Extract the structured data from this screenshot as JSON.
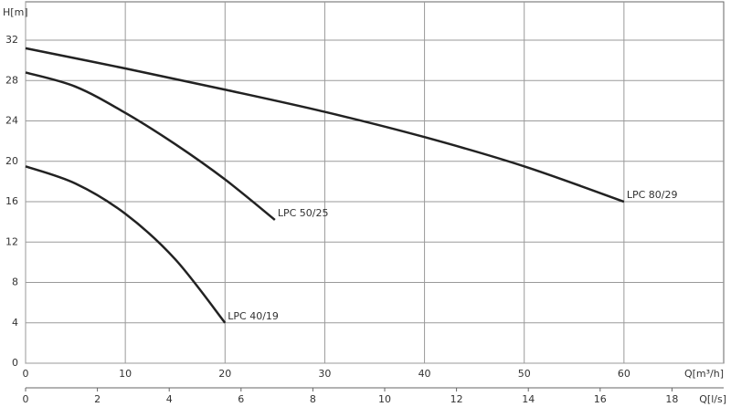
{
  "chart_data": {
    "type": "line",
    "ylabel": "H[m]",
    "xlabel": "Q[m³/h]",
    "x2label": "Q[l/s]",
    "xlim": [
      0,
      70
    ],
    "ylim": [
      0,
      35.8
    ],
    "x2lim": [
      0,
      19.44
    ],
    "xticks": [
      0,
      10,
      20,
      30,
      40,
      50,
      60
    ],
    "yticks": [
      0,
      4,
      8,
      12,
      16,
      20,
      24,
      28,
      32
    ],
    "x2ticks": [
      0,
      2,
      4,
      6,
      8,
      10,
      12,
      14,
      16,
      18
    ],
    "grid": true,
    "series": [
      {
        "name": "LPC 40/19",
        "color": "#222222",
        "x": [
          0,
          5,
          10,
          15,
          20
        ],
        "values": [
          19.5,
          17.8,
          14.8,
          10.3,
          4
        ]
      },
      {
        "name": "LPC 50/25",
        "color": "#222222",
        "x": [
          0,
          5,
          10,
          15,
          20,
          25
        ],
        "values": [
          28.8,
          27.4,
          24.8,
          21.7,
          18.2,
          14.2
        ]
      },
      {
        "name": "LPC 80/29",
        "color": "#222222",
        "x": [
          0,
          10,
          20,
          30,
          40,
          50,
          60
        ],
        "values": [
          31.2,
          29.2,
          27.1,
          24.9,
          22.4,
          19.5,
          16
        ]
      }
    ]
  }
}
